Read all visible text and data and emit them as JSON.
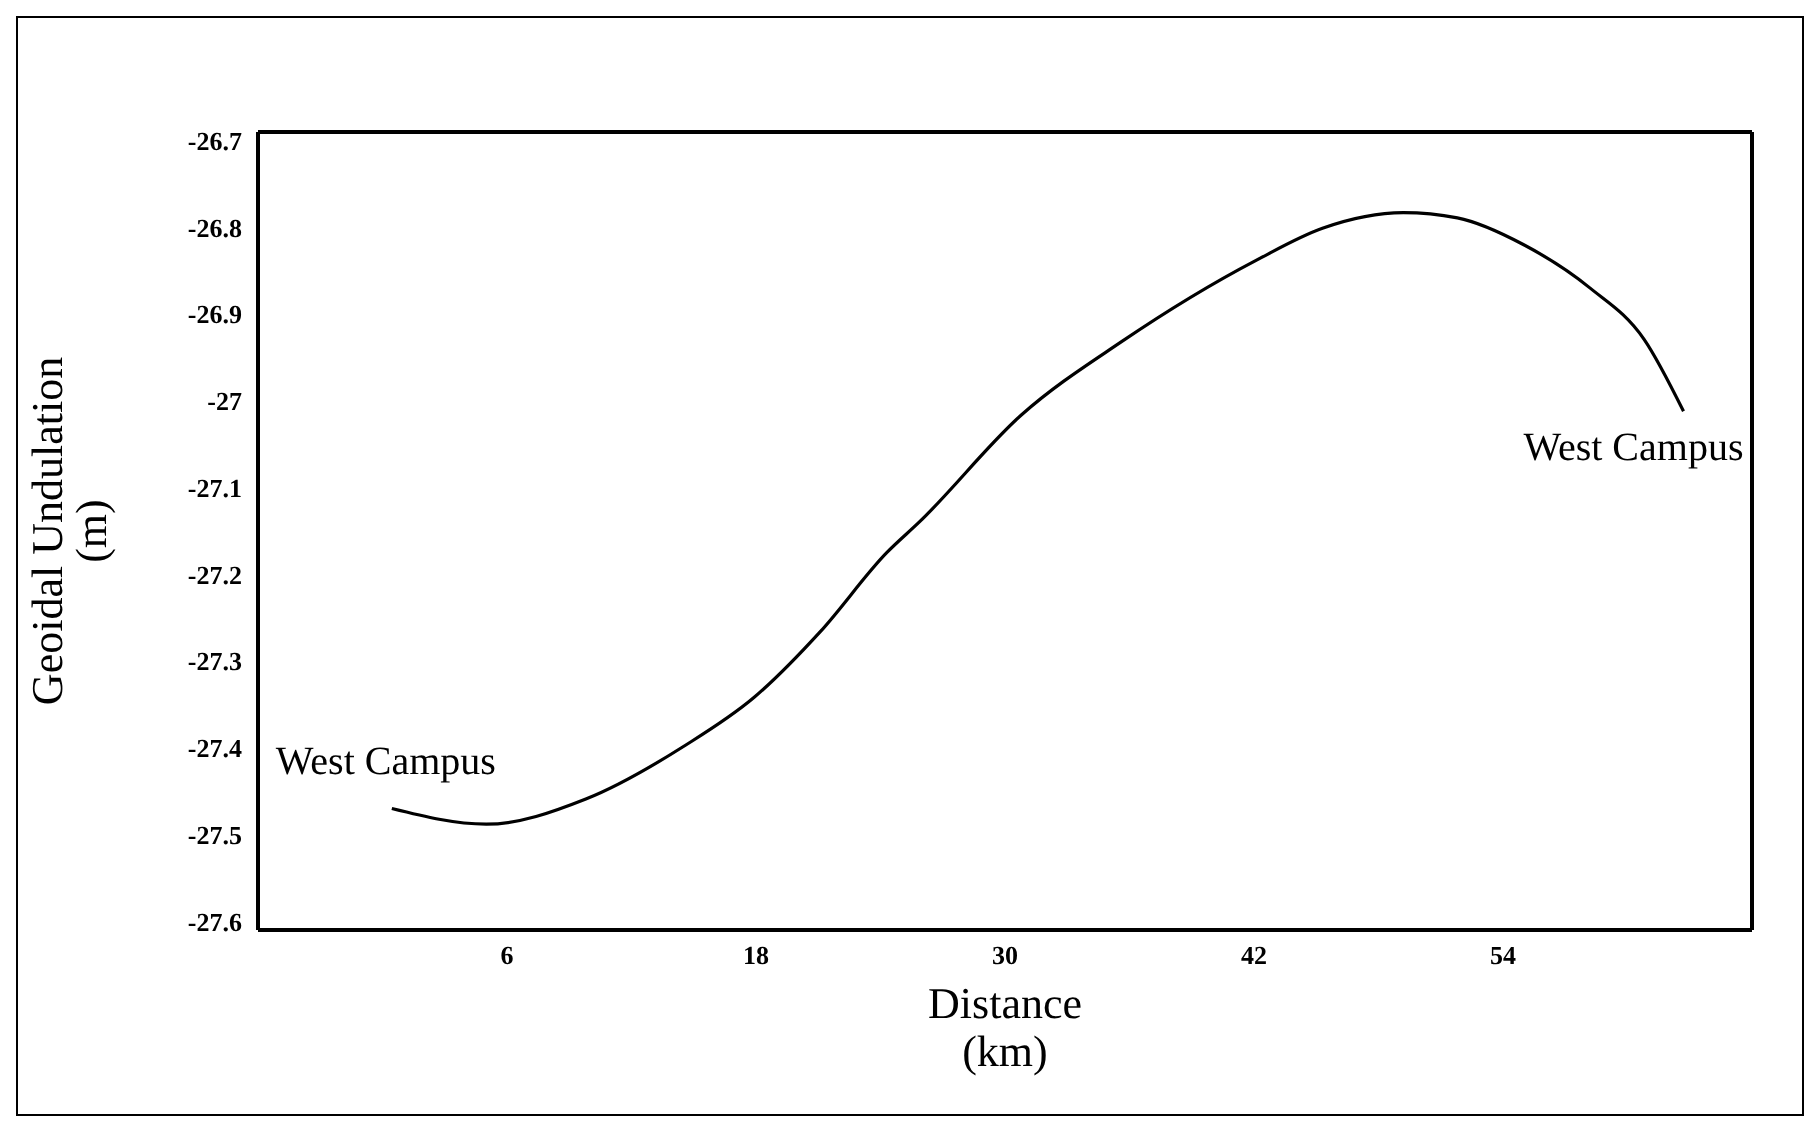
{
  "chart_data": {
    "type": "line",
    "xlabel": "Distance\n(km)",
    "ylabel": "Geoidal Undulation\n(m)",
    "x": [
      0.45,
      5.0,
      9.8,
      14.6,
      17.9,
      21.1,
      24.3,
      25.9,
      30.8,
      35.6,
      42.1,
      45.3,
      49.2,
      51.8,
      55.0,
      58.2,
      60.8,
      62.7
    ],
    "series": [
      {
        "color": "#000000",
        "values": [
          -27.47,
          -27.488,
          -27.459,
          -27.397,
          -27.342,
          -27.266,
          -27.175,
          -27.139,
          -27.016,
          -26.932,
          -26.838,
          -26.801,
          -26.783,
          -26.789,
          -26.82,
          -26.87,
          -26.929,
          -27.012
        ]
      }
    ],
    "xlim": [
      -6,
      66
    ],
    "xticks": [
      6,
      18,
      30,
      42,
      54
    ],
    "ylim": [
      -27.61,
      -26.69
    ],
    "yticks": [
      -26.7,
      -26.8,
      -26.9,
      -27,
      -27.1,
      -27.2,
      -27.3,
      -27.4,
      -27.5,
      -27.6
    ],
    "annotations": [
      "West Campus",
      "West Campus"
    ],
    "grid": false,
    "legend": false,
    "marker": "none",
    "line_style": "solid"
  }
}
